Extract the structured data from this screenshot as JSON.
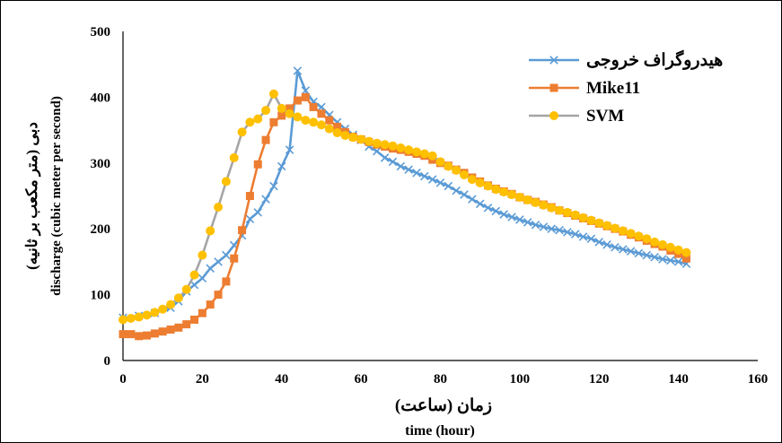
{
  "chart_data": {
    "type": "line",
    "xlabel_fa": "زمان (ساعت)",
    "xlabel_en": "time (hour)",
    "ylabel_fa": "دبی (متر مکعب بر ثانیه)",
    "ylabel_en": "discharge (cubic meter per second)",
    "xlim": [
      0,
      160
    ],
    "ylim": [
      0,
      500
    ],
    "xticks": [
      0,
      20,
      40,
      60,
      80,
      100,
      120,
      140,
      160
    ],
    "yticks": [
      0,
      100,
      200,
      300,
      400,
      500
    ],
    "grid": false,
    "legend_position": "top-right",
    "series": [
      {
        "name": "هیدروگراف خروجی",
        "color": "#5B9BD5",
        "marker": "x",
        "points": [
          [
            0,
            65
          ],
          [
            4,
            68
          ],
          [
            8,
            72
          ],
          [
            12,
            80
          ],
          [
            14,
            90
          ],
          [
            16,
            105
          ],
          [
            18,
            115
          ],
          [
            20,
            125
          ],
          [
            22,
            140
          ],
          [
            24,
            150
          ],
          [
            26,
            160
          ],
          [
            28,
            175
          ],
          [
            30,
            190
          ],
          [
            32,
            215
          ],
          [
            34,
            225
          ],
          [
            36,
            245
          ],
          [
            38,
            265
          ],
          [
            40,
            295
          ],
          [
            42,
            320
          ],
          [
            44,
            440
          ],
          [
            46,
            410
          ],
          [
            48,
            393
          ],
          [
            50,
            385
          ],
          [
            52,
            373
          ],
          [
            54,
            362
          ],
          [
            56,
            352
          ],
          [
            58,
            343
          ],
          [
            60,
            335
          ],
          [
            62,
            325
          ],
          [
            64,
            318
          ],
          [
            66,
            308
          ],
          [
            68,
            302
          ],
          [
            70,
            295
          ],
          [
            72,
            290
          ],
          [
            74,
            285
          ],
          [
            76,
            280
          ],
          [
            78,
            275
          ],
          [
            80,
            270
          ],
          [
            82,
            265
          ],
          [
            84,
            258
          ],
          [
            86,
            252
          ],
          [
            88,
            245
          ],
          [
            90,
            238
          ],
          [
            92,
            232
          ],
          [
            94,
            227
          ],
          [
            96,
            222
          ],
          [
            98,
            218
          ],
          [
            100,
            214
          ],
          [
            102,
            210
          ],
          [
            104,
            206
          ],
          [
            106,
            203
          ],
          [
            108,
            200
          ],
          [
            110,
            198
          ],
          [
            112,
            195
          ],
          [
            114,
            192
          ],
          [
            116,
            188
          ],
          [
            118,
            185
          ],
          [
            120,
            180
          ],
          [
            122,
            176
          ],
          [
            124,
            172
          ],
          [
            126,
            169
          ],
          [
            128,
            166
          ],
          [
            130,
            163
          ],
          [
            132,
            160
          ],
          [
            134,
            157
          ],
          [
            136,
            154
          ],
          [
            138,
            152
          ],
          [
            140,
            150
          ],
          [
            142,
            147
          ]
        ]
      },
      {
        "name": "Mike11",
        "color": "#ED7D31",
        "marker": "square",
        "points": [
          [
            0,
            40
          ],
          [
            2,
            40
          ],
          [
            4,
            37
          ],
          [
            6,
            38
          ],
          [
            8,
            41
          ],
          [
            10,
            44
          ],
          [
            12,
            47
          ],
          [
            14,
            50
          ],
          [
            16,
            55
          ],
          [
            18,
            62
          ],
          [
            20,
            72
          ],
          [
            22,
            85
          ],
          [
            24,
            100
          ],
          [
            26,
            120
          ],
          [
            28,
            155
          ],
          [
            30,
            198
          ],
          [
            32,
            250
          ],
          [
            34,
            298
          ],
          [
            36,
            335
          ],
          [
            38,
            362
          ],
          [
            40,
            372
          ],
          [
            42,
            383
          ],
          [
            44,
            395
          ],
          [
            46,
            400
          ],
          [
            48,
            385
          ],
          [
            50,
            375
          ],
          [
            52,
            365
          ],
          [
            54,
            355
          ],
          [
            56,
            347
          ],
          [
            58,
            340
          ],
          [
            60,
            336
          ],
          [
            62,
            332
          ],
          [
            64,
            328
          ],
          [
            66,
            325
          ],
          [
            68,
            322
          ],
          [
            70,
            320
          ],
          [
            72,
            317
          ],
          [
            74,
            314
          ],
          [
            76,
            311
          ],
          [
            78,
            305
          ],
          [
            80,
            300
          ],
          [
            82,
            296
          ],
          [
            84,
            290
          ],
          [
            86,
            285
          ],
          [
            88,
            278
          ],
          [
            90,
            272
          ],
          [
            92,
            266
          ],
          [
            94,
            261
          ],
          [
            96,
            257
          ],
          [
            98,
            253
          ],
          [
            100,
            248
          ],
          [
            102,
            244
          ],
          [
            104,
            241
          ],
          [
            106,
            237
          ],
          [
            108,
            233
          ],
          [
            110,
            228
          ],
          [
            112,
            224
          ],
          [
            114,
            220
          ],
          [
            116,
            216
          ],
          [
            118,
            212
          ],
          [
            120,
            208
          ],
          [
            122,
            204
          ],
          [
            124,
            200
          ],
          [
            126,
            196
          ],
          [
            128,
            191
          ],
          [
            130,
            187
          ],
          [
            132,
            182
          ],
          [
            134,
            177
          ],
          [
            136,
            173
          ],
          [
            138,
            167
          ],
          [
            140,
            162
          ],
          [
            142,
            155
          ]
        ]
      },
      {
        "name": "SVM",
        "color": "#FFC000",
        "line_color": "#A5A5A5",
        "marker": "circle",
        "points": [
          [
            0,
            62
          ],
          [
            2,
            64
          ],
          [
            4,
            66
          ],
          [
            6,
            69
          ],
          [
            8,
            73
          ],
          [
            10,
            78
          ],
          [
            12,
            85
          ],
          [
            14,
            95
          ],
          [
            16,
            108
          ],
          [
            18,
            130
          ],
          [
            20,
            160
          ],
          [
            22,
            197
          ],
          [
            24,
            233
          ],
          [
            26,
            272
          ],
          [
            28,
            308
          ],
          [
            30,
            347
          ],
          [
            32,
            362
          ],
          [
            34,
            367
          ],
          [
            36,
            380
          ],
          [
            38,
            405
          ],
          [
            40,
            383
          ],
          [
            42,
            375
          ],
          [
            44,
            370
          ],
          [
            46,
            365
          ],
          [
            48,
            362
          ],
          [
            50,
            358
          ],
          [
            52,
            352
          ],
          [
            54,
            346
          ],
          [
            56,
            342
          ],
          [
            58,
            339
          ],
          [
            60,
            336
          ],
          [
            62,
            333
          ],
          [
            64,
            330
          ],
          [
            66,
            328
          ],
          [
            68,
            326
          ],
          [
            70,
            323
          ],
          [
            72,
            320
          ],
          [
            74,
            317
          ],
          [
            76,
            314
          ],
          [
            78,
            311
          ],
          [
            80,
            302
          ],
          [
            82,
            295
          ],
          [
            84,
            289
          ],
          [
            86,
            282
          ],
          [
            88,
            275
          ],
          [
            90,
            270
          ],
          [
            92,
            265
          ],
          [
            94,
            260
          ],
          [
            96,
            256
          ],
          [
            98,
            252
          ],
          [
            100,
            248
          ],
          [
            102,
            244
          ],
          [
            104,
            240
          ],
          [
            106,
            236
          ],
          [
            108,
            232
          ],
          [
            110,
            228
          ],
          [
            112,
            225
          ],
          [
            114,
            221
          ],
          [
            116,
            217
          ],
          [
            118,
            213
          ],
          [
            120,
            209
          ],
          [
            122,
            205
          ],
          [
            124,
            201
          ],
          [
            126,
            197
          ],
          [
            128,
            193
          ],
          [
            130,
            189
          ],
          [
            132,
            185
          ],
          [
            134,
            180
          ],
          [
            136,
            176
          ],
          [
            138,
            172
          ],
          [
            140,
            168
          ],
          [
            142,
            164
          ]
        ]
      }
    ]
  }
}
